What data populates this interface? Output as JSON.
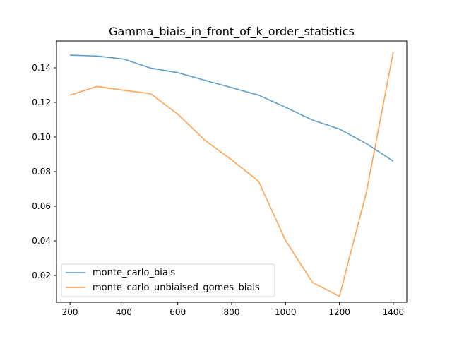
{
  "chart_data": {
    "type": "line",
    "title": "Gamma_biais_in_front_of_k_order_statistics",
    "xlabel": "",
    "ylabel": "",
    "x": [
      200,
      300,
      400,
      500,
      600,
      700,
      800,
      900,
      1000,
      1100,
      1200,
      1300,
      1400
    ],
    "xlim": [
      150,
      1450
    ],
    "ylim": [
      0.0045,
      0.1555
    ],
    "x_ticks": [
      200,
      400,
      600,
      800,
      1000,
      1200,
      1400
    ],
    "y_ticks": [
      0.02,
      0.04,
      0.06,
      0.08,
      0.1,
      0.12,
      0.14
    ],
    "x_tick_labels": [
      "200",
      "400",
      "600",
      "800",
      "1000",
      "1200",
      "1400"
    ],
    "y_tick_labels": [
      "0.02",
      "0.04",
      "0.06",
      "0.08",
      "0.10",
      "0.12",
      "0.14"
    ],
    "grid": false,
    "legend_position": "bottom-left",
    "series": [
      {
        "name": "monte_carlo_biais",
        "color": "#1f77b4",
        "values": [
          0.1473,
          0.1468,
          0.145,
          0.1398,
          0.1372,
          0.1328,
          0.1285,
          0.1242,
          0.1172,
          0.1098,
          0.1046,
          0.0962,
          0.086
        ]
      },
      {
        "name": "monte_carlo_unbiaised_gomes_biais",
        "color": "#ff7f0e",
        "values": [
          0.1242,
          0.1292,
          0.127,
          0.125,
          0.1132,
          0.0982,
          0.0868,
          0.0744,
          0.0402,
          0.016,
          0.008,
          0.068,
          0.1492
        ]
      }
    ]
  }
}
